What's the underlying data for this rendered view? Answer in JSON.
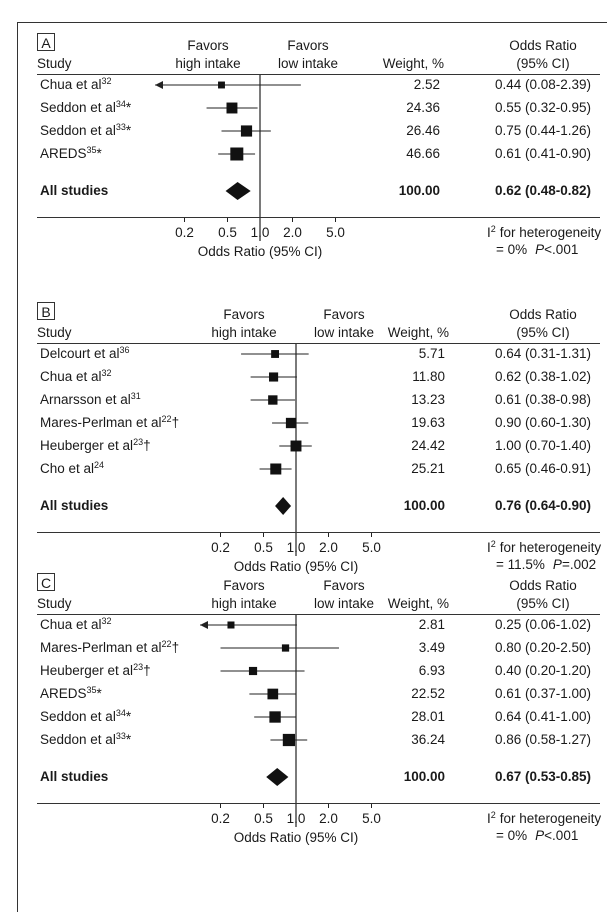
{
  "chart_data": [
    {
      "type": "forest",
      "panel_label": "A",
      "headers": {
        "study": "Study",
        "favors_high_1": "Favors",
        "favors_high_2": "high intake",
        "favors_low_1": "Favors",
        "favors_low_2": "low intake",
        "weight": "Weight, %",
        "or_1": "Odds Ratio",
        "or_2": "(95% CI)"
      },
      "rows": [
        {
          "study": "Chua et al",
          "sup": "32",
          "mark": "",
          "weight": "2.52",
          "or_text": "0.44 (0.08-2.39)",
          "or": 0.44,
          "lo": 0.08,
          "hi": 2.39
        },
        {
          "study": "Seddon et al",
          "sup": "34",
          "mark": "*",
          "weight": "24.36",
          "or_text": "0.55 (0.32-0.95)",
          "or": 0.55,
          "lo": 0.32,
          "hi": 0.95
        },
        {
          "study": "Seddon et al",
          "sup": "33",
          "mark": "*",
          "weight": "26.46",
          "or_text": "0.75 (0.44-1.26)",
          "or": 0.75,
          "lo": 0.44,
          "hi": 1.26
        },
        {
          "study": "AREDS",
          "sup": "35",
          "mark": "*",
          "weight": "46.66",
          "or_text": "0.61 (0.41-0.90)",
          "or": 0.61,
          "lo": 0.41,
          "hi": 0.9
        }
      ],
      "pooled": {
        "study": "All studies",
        "weight": "100.00",
        "or_text": "0.62 (0.48-0.82)",
        "or": 0.62,
        "lo": 0.48,
        "hi": 0.82
      },
      "x_ticks": [
        "0.2",
        "0.5",
        "1.0",
        "2.0",
        "5.0"
      ],
      "x_tick_values": [
        0.2,
        0.5,
        1.0,
        2.0,
        5.0
      ],
      "xlabel": "Odds Ratio (95% CI)",
      "heterogeneity_1": "for heterogeneity",
      "heterogeneity_i": "I",
      "heterogeneity_2": "= 0%",
      "p_label": "P",
      "p_value": "<.001",
      "x_scale": "log"
    },
    {
      "type": "forest",
      "panel_label": "B",
      "headers": {
        "study": "Study",
        "favors_high_1": "Favors",
        "favors_high_2": "high intake",
        "favors_low_1": "Favors",
        "favors_low_2": "low intake",
        "weight": "Weight, %",
        "or_1": "Odds Ratio",
        "or_2": "(95% CI)"
      },
      "rows": [
        {
          "study": "Delcourt et al",
          "sup": "36",
          "mark": "",
          "weight": "5.71",
          "or_text": "0.64 (0.31-1.31)",
          "or": 0.64,
          "lo": 0.31,
          "hi": 1.31
        },
        {
          "study": "Chua et al",
          "sup": "32",
          "mark": "",
          "weight": "11.80",
          "or_text": "0.62 (0.38-1.02)",
          "or": 0.62,
          "lo": 0.38,
          "hi": 1.02
        },
        {
          "study": "Arnarsson et al",
          "sup": "31",
          "mark": "",
          "weight": "13.23",
          "or_text": "0.61 (0.38-0.98)",
          "or": 0.61,
          "lo": 0.38,
          "hi": 0.98
        },
        {
          "study": "Mares-Perlman et al",
          "sup": "22",
          "mark": "†",
          "weight": "19.63",
          "or_text": "0.90 (0.60-1.30)",
          "or": 0.9,
          "lo": 0.6,
          "hi": 1.3
        },
        {
          "study": "Heuberger et al",
          "sup": "23",
          "mark": "†",
          "weight": "24.42",
          "or_text": "1.00 (0.70-1.40)",
          "or": 1.0,
          "lo": 0.7,
          "hi": 1.4
        },
        {
          "study": "Cho et al",
          "sup": "24",
          "mark": "",
          "weight": "25.21",
          "or_text": "0.65 (0.46-0.91)",
          "or": 0.65,
          "lo": 0.46,
          "hi": 0.91
        }
      ],
      "pooled": {
        "study": "All studies",
        "weight": "100.00",
        "or_text": "0.76 (0.64-0.90)",
        "or": 0.76,
        "lo": 0.64,
        "hi": 0.9
      },
      "x_ticks": [
        "0.2",
        "0.5",
        "1.0",
        "2.0",
        "5.0"
      ],
      "x_tick_values": [
        0.2,
        0.5,
        1.0,
        2.0,
        5.0
      ],
      "xlabel": "Odds Ratio (95% CI)",
      "heterogeneity_1": "for heterogeneity",
      "heterogeneity_i": "I",
      "heterogeneity_2": "= 11.5%",
      "p_label": "P",
      "p_value": "=.002",
      "x_scale": "log"
    },
    {
      "type": "forest",
      "panel_label": "C",
      "headers": {
        "study": "Study",
        "favors_high_1": "Favors",
        "favors_high_2": "high intake",
        "favors_low_1": "Favors",
        "favors_low_2": "low intake",
        "weight": "Weight, %",
        "or_1": "Odds Ratio",
        "or_2": "(95% CI)"
      },
      "rows": [
        {
          "study": "Chua et al",
          "sup": "32",
          "mark": "",
          "weight": "2.81",
          "or_text": "0.25 (0.06-1.02)",
          "or": 0.25,
          "lo": 0.06,
          "hi": 1.02
        },
        {
          "study": "Mares-Perlman et al",
          "sup": "22",
          "mark": "†",
          "weight": "3.49",
          "or_text": "0.80 (0.20-2.50)",
          "or": 0.8,
          "lo": 0.2,
          "hi": 2.5
        },
        {
          "study": "Heuberger et al",
          "sup": "23",
          "mark": "†",
          "weight": "6.93",
          "or_text": "0.40 (0.20-1.20)",
          "or": 0.4,
          "lo": 0.2,
          "hi": 1.2
        },
        {
          "study": "AREDS",
          "sup": "35",
          "mark": "*",
          "weight": "22.52",
          "or_text": "0.61 (0.37-1.00)",
          "or": 0.61,
          "lo": 0.37,
          "hi": 1.0
        },
        {
          "study": "Seddon et al",
          "sup": "34",
          "mark": "*",
          "weight": "28.01",
          "or_text": "0.64 (0.41-1.00)",
          "or": 0.64,
          "lo": 0.41,
          "hi": 1.0
        },
        {
          "study": "Seddon et al",
          "sup": "33",
          "mark": "*",
          "weight": "36.24",
          "or_text": "0.86 (0.58-1.27)",
          "or": 0.86,
          "lo": 0.58,
          "hi": 1.27
        }
      ],
      "pooled": {
        "study": "All studies",
        "weight": "100.00",
        "or_text": "0.67 (0.53-0.85)",
        "or": 0.67,
        "lo": 0.53,
        "hi": 0.85
      },
      "x_ticks": [
        "0.2",
        "0.5",
        "1.0",
        "2.0",
        "5.0"
      ],
      "x_tick_values": [
        0.2,
        0.5,
        1.0,
        2.0,
        5.0
      ],
      "xlabel": "Odds Ratio (95% CI)",
      "heterogeneity_1": "for heterogeneity",
      "heterogeneity_i": "I",
      "heterogeneity_2": "= 0%",
      "p_label": "P",
      "p_value": "<.001",
      "x_scale": "log"
    }
  ]
}
